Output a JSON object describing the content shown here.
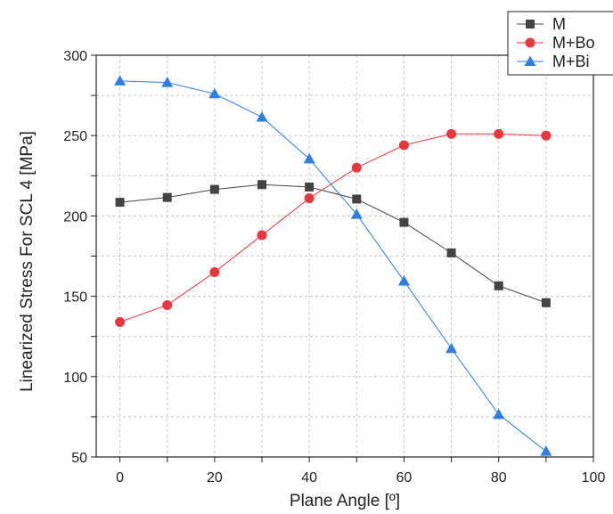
{
  "chart_data": {
    "type": "line",
    "title": "",
    "xlabel": "Plane Angle [º]",
    "ylabel": "Linearized Stress For SCL 4 [MPa]",
    "xlim": [
      -5,
      100
    ],
    "ylim": [
      50,
      300
    ],
    "xticks": [
      0,
      20,
      40,
      60,
      80,
      100
    ],
    "yticks": [
      50,
      100,
      150,
      200,
      250,
      300
    ],
    "grid": true,
    "legend_position": "top-right",
    "x": [
      0,
      10,
      20,
      30,
      40,
      50,
      60,
      70,
      80,
      90
    ],
    "series": [
      {
        "name": "M",
        "color": "#444444",
        "marker": "square",
        "values": [
          208.5,
          211.5,
          216.5,
          219.5,
          218,
          210.5,
          196,
          177,
          156.5,
          146
        ]
      },
      {
        "name": "M+Bo",
        "color": "#e8383d",
        "marker": "circle",
        "values": [
          134,
          144.5,
          165,
          188,
          211,
          230,
          244,
          251,
          251,
          250
        ]
      },
      {
        "name": "M+Bi",
        "color": "#2f7ee0",
        "marker": "triangle",
        "values": [
          284,
          283,
          276,
          261.5,
          235.5,
          201,
          159.5,
          117.5,
          76.5,
          53.5
        ]
      }
    ]
  }
}
